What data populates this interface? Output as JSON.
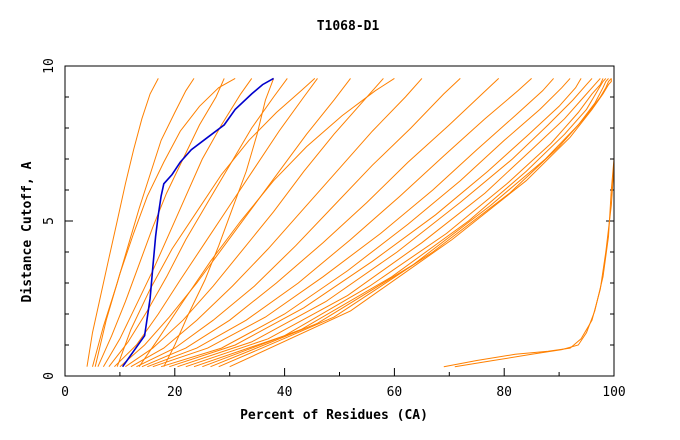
{
  "chart_data": {
    "type": "line",
    "title": "T1068-D1",
    "xlabel": "Percent of Residues (CA)",
    "ylabel": "Distance Cutoff, A",
    "xlim": [
      0,
      100
    ],
    "ylim": [
      0,
      10
    ],
    "x_ticks": [
      0,
      20,
      40,
      60,
      80,
      100
    ],
    "x_tick_labels": [
      "0",
      "20",
      "40",
      "60",
      "80",
      "100"
    ],
    "y_ticks": [
      0,
      5,
      10
    ],
    "y_tick_labels": [
      "0",
      "5",
      "10"
    ],
    "grid": false,
    "legend": "none",
    "background_color": "#ffffff",
    "colors": {
      "models": "#ff8000",
      "highlight": "#0000cc"
    },
    "highlight_series": {
      "x": [
        10.5,
        14.5,
        15.5,
        16.0,
        16.5,
        17.0,
        17.5,
        18.0,
        19.5,
        21.0,
        23.0,
        26.0,
        29.0,
        31.0,
        34.0,
        36.0,
        38.0
      ],
      "y": [
        0.3,
        1.3,
        2.5,
        3.5,
        4.5,
        5.2,
        5.8,
        6.2,
        6.5,
        6.9,
        7.3,
        7.7,
        8.1,
        8.6,
        9.1,
        9.4,
        9.6
      ]
    },
    "model_series": [
      {
        "x": [
          4.0,
          5.0,
          6.5,
          8.0,
          9.5,
          11.0,
          12.5,
          14.0,
          15.5,
          17.0
        ],
        "y": [
          0.3,
          1.4,
          2.6,
          3.8,
          5.0,
          6.2,
          7.3,
          8.3,
          9.1,
          9.6
        ]
      },
      {
        "x": [
          5.0,
          7.0,
          9.5,
          11.5,
          13.5,
          15.5,
          17.5,
          20.0,
          22.0,
          23.5
        ],
        "y": [
          0.3,
          1.6,
          3.0,
          4.2,
          5.4,
          6.5,
          7.6,
          8.5,
          9.2,
          9.6
        ]
      },
      {
        "x": [
          6.0,
          8.5,
          11.0,
          13.5,
          16.0,
          18.5,
          21.5,
          24.5,
          27.5,
          29.0
        ],
        "y": [
          0.3,
          1.3,
          2.4,
          3.6,
          4.8,
          5.9,
          7.0,
          8.1,
          9.0,
          9.6
        ]
      },
      {
        "x": [
          7.0,
          10.0,
          13.0,
          16.0,
          19.0,
          22.0,
          25.0,
          28.5,
          32.0,
          34.0
        ],
        "y": [
          0.3,
          1.2,
          2.3,
          3.4,
          4.6,
          5.8,
          7.0,
          8.1,
          9.1,
          9.6
        ]
      },
      {
        "x": [
          8.0,
          11.5,
          15.0,
          18.5,
          22.0,
          26.0,
          30.0,
          34.0,
          38.0,
          40.5
        ],
        "y": [
          0.3,
          1.1,
          2.1,
          3.2,
          4.4,
          5.6,
          6.8,
          8.0,
          9.0,
          9.6
        ]
      },
      {
        "x": [
          9.0,
          13.0,
          17.0,
          21.0,
          25.5,
          30.0,
          34.5,
          39.0,
          43.5,
          46.0
        ],
        "y": [
          0.3,
          1.0,
          2.0,
          3.1,
          4.3,
          5.5,
          6.7,
          7.9,
          9.0,
          9.6
        ]
      },
      {
        "x": [
          10.0,
          14.5,
          19.0,
          24.0,
          29.0,
          34.0,
          39.0,
          44.0,
          49.0,
          52.0
        ],
        "y": [
          0.3,
          1.0,
          1.9,
          3.0,
          4.2,
          5.4,
          6.6,
          7.8,
          8.9,
          9.6
        ]
      },
      {
        "x": [
          11.0,
          16.0,
          21.5,
          27.0,
          32.5,
          38.0,
          43.5,
          49.0,
          54.5,
          58.0
        ],
        "y": [
          0.3,
          0.9,
          1.8,
          2.9,
          4.1,
          5.3,
          6.6,
          7.8,
          8.9,
          9.6
        ]
      },
      {
        "x": [
          12.0,
          18.0,
          24.0,
          30.5,
          37.0,
          43.5,
          50.0,
          56.0,
          62.0,
          65.0
        ],
        "y": [
          0.3,
          0.9,
          1.8,
          2.9,
          4.1,
          5.4,
          6.7,
          7.9,
          9.0,
          9.6
        ]
      },
      {
        "x": [
          13.0,
          20.0,
          27.0,
          34.5,
          42.0,
          49.0,
          56.0,
          63.0,
          69.0,
          72.0
        ],
        "y": [
          0.3,
          0.9,
          1.8,
          2.9,
          4.2,
          5.5,
          6.8,
          8.0,
          9.1,
          9.6
        ]
      },
      {
        "x": [
          14.0,
          22.0,
          30.0,
          38.5,
          47.0,
          55.0,
          62.5,
          70.0,
          76.0,
          79.0
        ],
        "y": [
          0.3,
          0.9,
          1.8,
          3.0,
          4.3,
          5.6,
          6.9,
          8.1,
          9.1,
          9.6
        ]
      },
      {
        "x": [
          15.0,
          24.0,
          33.0,
          42.5,
          52.0,
          61.0,
          69.0,
          76.5,
          82.5,
          85.0
        ],
        "y": [
          0.3,
          0.9,
          1.8,
          3.0,
          4.4,
          5.8,
          7.1,
          8.3,
          9.2,
          9.6
        ]
      },
      {
        "x": [
          16.0,
          26.0,
          36.5,
          47.0,
          57.5,
          67.0,
          75.0,
          82.0,
          87.0,
          89.0
        ],
        "y": [
          0.3,
          0.9,
          1.9,
          3.2,
          4.6,
          6.0,
          7.3,
          8.4,
          9.2,
          9.6
        ]
      },
      {
        "x": [
          17.5,
          28.5,
          40.0,
          51.5,
          62.5,
          72.0,
          80.0,
          86.5,
          90.5,
          92.0
        ],
        "y": [
          0.3,
          0.9,
          2.0,
          3.4,
          4.9,
          6.3,
          7.6,
          8.6,
          9.3,
          9.6
        ]
      },
      {
        "x": [
          19.0,
          31.0,
          43.5,
          56.0,
          67.5,
          77.0,
          84.5,
          90.0,
          93.0,
          94.0
        ],
        "y": [
          0.3,
          1.0,
          2.2,
          3.7,
          5.2,
          6.6,
          7.8,
          8.7,
          9.3,
          9.6
        ]
      },
      {
        "x": [
          20.5,
          34.0,
          47.5,
          60.5,
          72.0,
          81.5,
          88.0,
          92.5,
          95.0,
          96.0
        ],
        "y": [
          0.3,
          1.1,
          2.4,
          4.0,
          5.6,
          7.0,
          8.1,
          8.9,
          9.4,
          9.6
        ]
      },
      {
        "x": [
          22.0,
          37.0,
          51.5,
          65.0,
          76.5,
          85.0,
          91.0,
          94.5,
          96.5,
          97.5
        ],
        "y": [
          0.3,
          1.2,
          2.6,
          4.3,
          5.9,
          7.3,
          8.3,
          9.0,
          9.4,
          9.6
        ]
      },
      {
        "x": [
          23.5,
          40.0,
          55.5,
          69.5,
          80.5,
          88.5,
          93.5,
          96.0,
          97.5,
          98.0
        ],
        "y": [
          0.3,
          1.3,
          2.9,
          4.6,
          6.2,
          7.5,
          8.5,
          9.1,
          9.4,
          9.6
        ]
      },
      {
        "x": [
          25.0,
          43.0,
          59.5,
          73.5,
          84.0,
          91.0,
          95.0,
          97.0,
          98.0,
          98.5
        ],
        "y": [
          0.3,
          1.5,
          3.2,
          5.0,
          6.6,
          7.8,
          8.6,
          9.2,
          9.5,
          9.6
        ]
      },
      {
        "x": [
          26.5,
          46.0,
          63.5,
          77.5,
          87.5,
          93.5,
          96.5,
          98.0,
          98.5,
          99.0
        ],
        "y": [
          0.3,
          1.7,
          3.6,
          5.5,
          7.0,
          8.1,
          8.8,
          9.3,
          9.5,
          9.6
        ]
      },
      {
        "x": [
          28.0,
          49.0,
          67.0,
          81.0,
          90.0,
          95.0,
          97.5,
          98.5,
          99.0,
          99.5
        ],
        "y": [
          0.3,
          1.9,
          4.0,
          5.9,
          7.4,
          8.4,
          9.0,
          9.3,
          9.5,
          9.6
        ]
      },
      {
        "x": [
          30.0,
          52.0,
          70.5,
          84.0,
          92.0,
          96.0,
          98.0,
          99.0,
          99.5,
          99.5
        ],
        "y": [
          0.3,
          2.1,
          4.4,
          6.3,
          7.7,
          8.6,
          9.1,
          9.4,
          9.5,
          9.6
        ]
      },
      {
        "x": [
          18.0,
          20.0,
          22.5,
          25.5,
          28.0,
          30.5,
          33.0,
          35.0,
          36.5,
          38.0
        ],
        "y": [
          0.3,
          1.0,
          2.0,
          3.1,
          4.2,
          5.4,
          6.6,
          7.8,
          8.9,
          9.6
        ]
      },
      {
        "x": [
          5.5,
          7.5,
          10.0,
          12.5,
          15.0,
          18.0,
          21.0,
          24.5,
          28.0,
          31.0
        ],
        "y": [
          0.3,
          1.8,
          3.3,
          4.6,
          5.8,
          6.9,
          7.9,
          8.7,
          9.3,
          9.6
        ]
      },
      {
        "x": [
          9.5,
          12.0,
          15.5,
          19.5,
          24.0,
          28.5,
          33.5,
          38.5,
          43.0,
          45.5
        ],
        "y": [
          0.3,
          1.5,
          2.8,
          4.1,
          5.3,
          6.5,
          7.6,
          8.5,
          9.2,
          9.6
        ]
      },
      {
        "x": [
          13.5,
          17.0,
          21.5,
          26.5,
          32.0,
          38.0,
          44.0,
          50.5,
          56.5,
          60.0
        ],
        "y": [
          0.3,
          1.2,
          2.4,
          3.7,
          5.0,
          6.3,
          7.4,
          8.4,
          9.2,
          9.6
        ]
      },
      {
        "x": [
          69.0,
          75.0,
          82.0,
          88.0,
          92.0,
          94.0,
          96.0,
          97.5,
          98.5,
          99.5,
          100.0
        ],
        "y": [
          0.3,
          0.5,
          0.7,
          0.8,
          0.9,
          1.2,
          1.8,
          2.8,
          4.0,
          5.5,
          6.8
        ]
      },
      {
        "x": [
          71.0,
          78.0,
          85.0,
          90.5,
          93.5,
          95.0,
          96.5,
          98.0,
          99.0,
          99.5,
          100.0
        ],
        "y": [
          0.3,
          0.5,
          0.7,
          0.85,
          1.0,
          1.4,
          2.1,
          3.2,
          4.5,
          6.0,
          7.0
        ]
      }
    ]
  }
}
